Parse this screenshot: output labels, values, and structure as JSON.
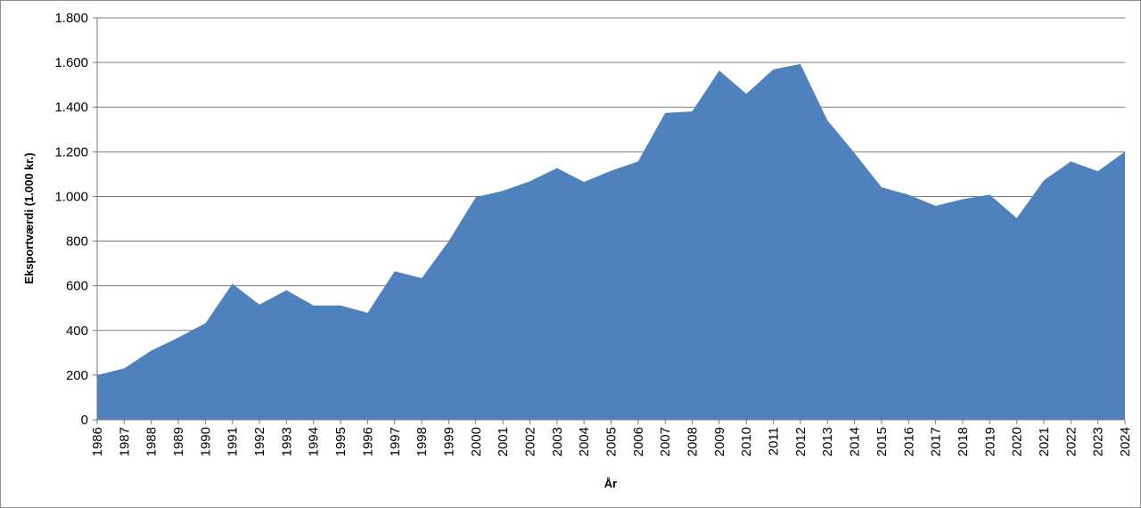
{
  "chart_data": {
    "type": "area",
    "title": "",
    "xlabel": "År",
    "ylabel": "Eksportværdi (1.000 kr.)",
    "ylim": [
      0,
      1800
    ],
    "yticks": [
      0,
      200,
      400,
      600,
      800,
      1000,
      1200,
      1400,
      1600,
      1800
    ],
    "ytick_labels": [
      "0",
      "200",
      "400",
      "600",
      "800",
      "1.000",
      "1.200",
      "1.400",
      "1.600",
      "1.800"
    ],
    "grid": true,
    "legend": "none",
    "fill_color": "#4f81bd",
    "categories": [
      "1986",
      "1987",
      "1988",
      "1989",
      "1990",
      "1991",
      "1992",
      "1993",
      "1994",
      "1995",
      "1996",
      "1997",
      "1998",
      "1999",
      "2000",
      "2001",
      "2002",
      "2003",
      "2004",
      "2005",
      "2006",
      "2007",
      "2008",
      "2009",
      "2010",
      "2011",
      "2012",
      "2013",
      "2014",
      "2015",
      "2016",
      "2017",
      "2018",
      "2019",
      "2020",
      "2021",
      "2022",
      "2023",
      "2024"
    ],
    "values": [
      200,
      230,
      310,
      368,
      432,
      609,
      516,
      580,
      512,
      512,
      479,
      665,
      634,
      800,
      997,
      1025,
      1068,
      1127,
      1065,
      1115,
      1157,
      1374,
      1381,
      1564,
      1460,
      1569,
      1593,
      1341,
      1195,
      1041,
      1008,
      958,
      988,
      1008,
      903,
      1072,
      1157,
      1113,
      1201
    ]
  }
}
